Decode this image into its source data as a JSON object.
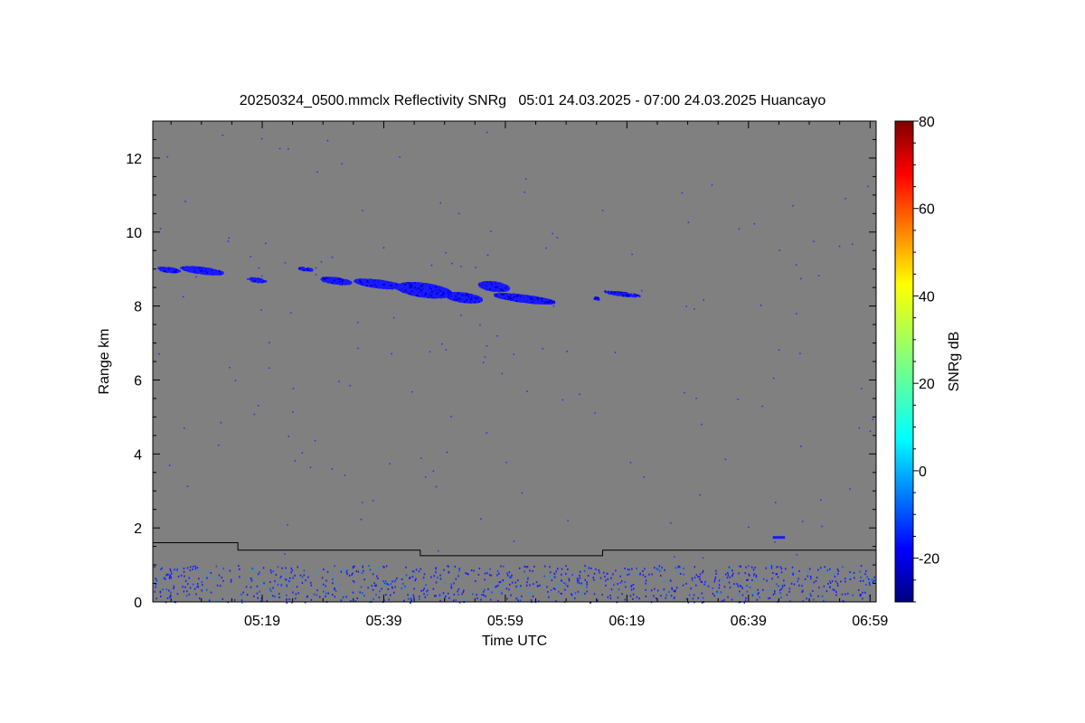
{
  "chart_data": {
    "type": "heatmap",
    "title": "20250324_0500.mmclx Reflectivity SNRg   05:01 24.03.2025 - 07:00 24.03.2025 Huancayo",
    "xlabel": "Time UTC",
    "ylabel": "Range km",
    "x_start": "05:01",
    "x_end": "07:00",
    "xlim_minutes": [
      301,
      420
    ],
    "ylim": [
      0,
      13
    ],
    "x_ticks": [
      {
        "minute": 319,
        "label": "05:19"
      },
      {
        "minute": 339,
        "label": "05:39"
      },
      {
        "minute": 359,
        "label": "05:59"
      },
      {
        "minute": 379,
        "label": "06:19"
      },
      {
        "minute": 399,
        "label": "06:39"
      },
      {
        "minute": 419,
        "label": "06:59"
      }
    ],
    "y_ticks": [
      0,
      2,
      4,
      6,
      8,
      10,
      12
    ],
    "background_color": "#808080",
    "colorbar": {
      "label": "SNRg dB",
      "min": -30,
      "max": 80,
      "ticks": [
        -20,
        0,
        20,
        40,
        60,
        80
      ],
      "colormap": "jet"
    },
    "echo_layers": [
      {
        "name": "cirrus layer",
        "x_start": 302,
        "x_end": 370,
        "base_km": 8.0,
        "top_km": 9.1,
        "snr_db": -25
      },
      {
        "name": "near-surface clutter",
        "x_start": 301,
        "x_end": 420,
        "base_km": 0.0,
        "top_km": 1.0,
        "snr_db": -18
      },
      {
        "name": "isolated echo",
        "x_start": 403,
        "x_end": 405,
        "base_km": 1.7,
        "top_km": 1.8,
        "snr_db": -22
      }
    ],
    "cloud_base_line": [
      {
        "minute": 301,
        "km": 1.6
      },
      {
        "minute": 315,
        "km": 1.6
      },
      {
        "minute": 315,
        "km": 1.4
      },
      {
        "minute": 345,
        "km": 1.4
      },
      {
        "minute": 345,
        "km": 1.25
      },
      {
        "minute": 375,
        "km": 1.25
      },
      {
        "minute": 375,
        "km": 1.4
      },
      {
        "minute": 420,
        "km": 1.4
      }
    ]
  }
}
